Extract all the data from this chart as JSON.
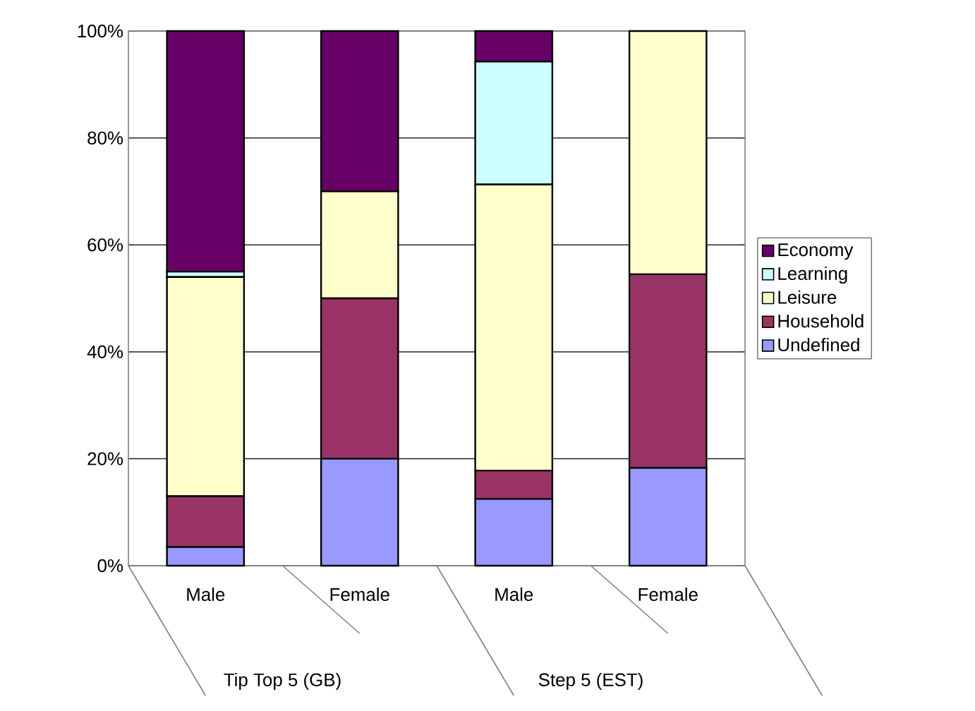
{
  "chart_data": {
    "type": "bar",
    "stacked": true,
    "categories": [
      "Male",
      "Female",
      "Male",
      "Female"
    ],
    "series": [
      {
        "name": "Undefined",
        "color": "#9999ff",
        "values": [
          3.5,
          20,
          12.5,
          18.3
        ]
      },
      {
        "name": "Household",
        "color": "#993366",
        "values": [
          9.5,
          30,
          5.3,
          36.2
        ]
      },
      {
        "name": "Leisure",
        "color": "#ffffcc",
        "values": [
          41,
          20,
          53.5,
          45.5
        ]
      },
      {
        "name": "Learning",
        "color": "#ccffff",
        "values": [
          1,
          0,
          23,
          null
        ]
      },
      {
        "name": "Economy",
        "color": "#660066",
        "values": [
          45,
          30,
          5.7,
          null
        ]
      }
    ],
    "ylim": [
      0,
      100
    ],
    "yticks": [
      {
        "value": 0,
        "label": "0%"
      },
      {
        "value": 20,
        "label": "20%"
      },
      {
        "value": 40,
        "label": "40%"
      },
      {
        "value": 60,
        "label": "60%"
      },
      {
        "value": 80,
        "label": "80%"
      },
      {
        "value": 100,
        "label": "100%"
      }
    ],
    "grid": "y",
    "legend": "right",
    "annotations": [
      "Tip Top 5 (GB)",
      "Step 5 (EST)"
    ]
  }
}
